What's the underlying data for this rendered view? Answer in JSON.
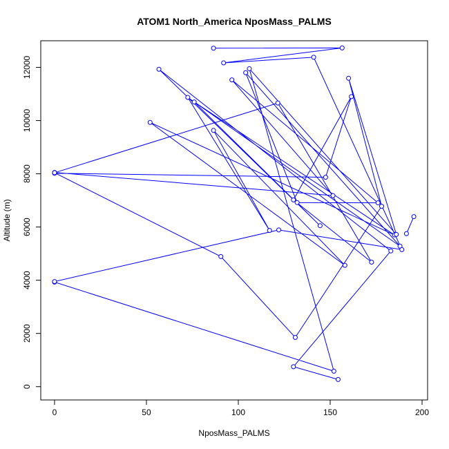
{
  "chart_data": {
    "type": "line",
    "title": "ATOM1 North_America NposMass_PALMS",
    "xlabel": "NposMass_PALMS",
    "ylabel": "Altitude (m)",
    "xlim": [
      -7.5,
      203
    ],
    "ylim": [
      -500,
      13000
    ],
    "xticks": [
      0,
      50,
      100,
      150,
      200
    ],
    "yticks": [
      0,
      2000,
      4000,
      6000,
      8000,
      10000,
      12000
    ],
    "marker": "open-circle",
    "grid": false,
    "legend": "none",
    "series": [
      {
        "color": "#0000ff",
        "x": [
          154.3,
          130.0,
          183.0,
          56.8,
          144.5,
          76.0,
          185.0,
          52.0,
          158.0,
          86.5,
          117.0,
          72.5,
          188.0,
          104.0,
          132.0,
          176.0,
          96.5,
          151.5,
          0,
          0,
          147.5,
          161.5,
          130.0,
          172.5,
          121.5,
          0,
          90.5,
          131.0,
          178.0,
          160.0,
          186.0,
          106.0,
          152.0,
          0,
          0,
          122.0,
          189.0,
          141.0,
          92.0,
          156.5,
          86.5
        ],
        "y": [
          270,
          750,
          5100,
          11930,
          6050,
          10700,
          5700,
          9930,
          4560,
          9630,
          5870,
          10870,
          5280,
          11800,
          6920,
          6910,
          11530,
          7180,
          8050,
          8020,
          7870,
          10900,
          7020,
          4680,
          10660,
          8040,
          4890,
          1850,
          6780,
          11590,
          5720,
          11950,
          580,
          3930,
          3950,
          5890,
          5150,
          12380,
          12170,
          12730,
          12720
        ]
      }
    ],
    "extra_series": [
      {
        "color": "#0000ff",
        "x": [
          195.5,
          191.5
        ],
        "y": [
          6390,
          5750
        ]
      }
    ]
  }
}
